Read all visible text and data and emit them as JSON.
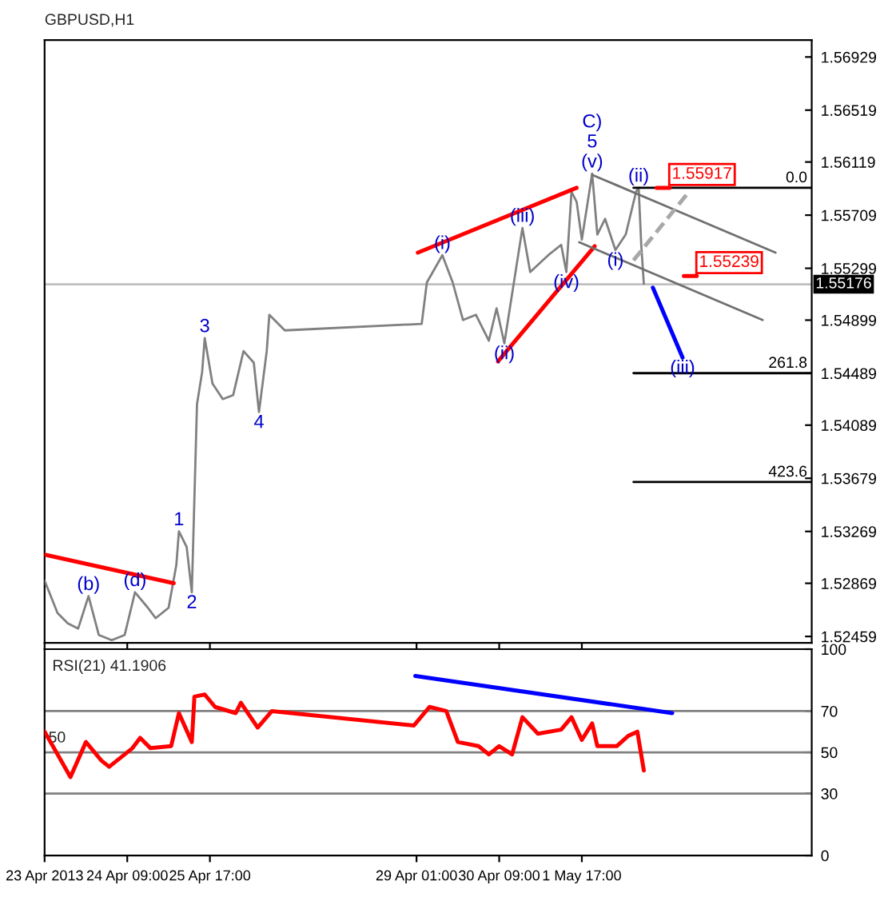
{
  "chart_data": [
    {
      "type": "line",
      "title": "GBPUSD,H1",
      "xlim": [
        "2013-04-23T01:00",
        "2013-05-05T10:00"
      ],
      "ylim": [
        1.5241,
        1.5706
      ],
      "yticks": [
        1.52459,
        1.52869,
        1.53269,
        1.53679,
        1.54089,
        1.54489,
        1.54899,
        1.55299,
        1.55709,
        1.56119,
        1.56519,
        1.56929
      ],
      "xticks": [
        {
          "value": "2013-04-23T01:00",
          "label": null
        },
        {
          "value": "2013-04-24T09:00",
          "label": null
        },
        {
          "value": "2013-04-25T17:00",
          "label": null
        },
        {
          "value": "2013-04-29T01:00",
          "label": null
        },
        {
          "value": "2013-04-30T09:00",
          "label": null
        },
        {
          "value": "2013-05-01T17:00",
          "label": null
        }
      ],
      "tick_labels": "y",
      "grid": false,
      "legend": false,
      "ref_lines": [
        {
          "axis": "y",
          "value": 1.55176,
          "label": "1.55176",
          "color": "#c0c0c0"
        }
      ],
      "series": [
        {
          "color": "#808080",
          "x": [
            "2013-04-23T01:00",
            "2013-04-23T06:00",
            "2013-04-23T10:00",
            "2013-04-23T14:00",
            "2013-04-23T18:00",
            "2013-04-23T22:00",
            "2013-04-24T03:00",
            "2013-04-24T08:00",
            "2013-04-24T12:00",
            "2013-04-24T17:00",
            "2013-04-24T20:00",
            "2013-04-25T01:00",
            "2013-04-25T04:00",
            "2013-04-25T05:00",
            "2013-04-25T08:00",
            "2013-04-25T10:00",
            "2013-04-25T12:00",
            "2013-04-25T14:00",
            "2013-04-25T15:00",
            "2013-04-25T18:00",
            "2013-04-25T22:00",
            "2013-04-26T02:00",
            "2013-04-26T06:00",
            "2013-04-26T10:00",
            "2013-04-26T12:00",
            "2013-04-26T15:00",
            "2013-04-26T16:00",
            "2013-04-26T22:00",
            "2013-04-29T03:00",
            "2013-04-29T05:00",
            "2013-04-29T11:00",
            "2013-04-29T15:00",
            "2013-04-29T19:00",
            "2013-04-30T00:00",
            "2013-04-30T05:00",
            "2013-04-30T08:00",
            "2013-04-30T11:00",
            "2013-04-30T18:00",
            "2013-04-30T21:00",
            "2013-05-01T04:00",
            "2013-05-01T09:00",
            "2013-05-01T11:00",
            "2013-05-01T13:00",
            "2013-05-01T15:00",
            "2013-05-01T17:00",
            "2013-05-01T21:00",
            "2013-05-01T23:00",
            "2013-05-02T02:00",
            "2013-05-02T06:00",
            "2013-05-02T10:00",
            "2013-05-02T14:00",
            "2013-05-02T15:00",
            "2013-05-02T16:00",
            "2013-05-02T17:00"
          ],
          "values": [
            1.5289,
            1.5264,
            1.5256,
            1.5252,
            1.5277,
            1.5247,
            1.5243,
            1.5247,
            1.528,
            1.5268,
            1.526,
            1.5268,
            1.5301,
            1.5327,
            1.5315,
            1.528,
            1.5425,
            1.545,
            1.5476,
            1.5441,
            1.5429,
            1.5432,
            1.5466,
            1.5457,
            1.5419,
            1.5466,
            1.5494,
            1.5482,
            1.5487,
            1.5519,
            1.554,
            1.5519,
            1.549,
            1.5494,
            1.5474,
            1.5499,
            1.5472,
            1.5561,
            1.5527,
            1.554,
            1.5548,
            1.5527,
            1.5589,
            1.5581,
            1.5552,
            1.5603,
            1.5556,
            1.5568,
            1.5544,
            1.5556,
            1.5589,
            1.5592,
            1.5548,
            1.5518
          ]
        },
        {
          "color": "#ff0000",
          "x": [
            "2013-04-23T01:00",
            "2013-04-25T03:00"
          ],
          "values": [
            1.5309,
            1.5287
          ]
        },
        {
          "color": "#ff0000",
          "x": [
            "2013-04-29T01:30",
            "2013-05-01T15:00"
          ],
          "values": [
            1.5542,
            1.5592
          ]
        },
        {
          "color": "#ff0000",
          "x": [
            "2013-04-30T08:30",
            "2013-05-01T22:00"
          ],
          "values": [
            1.5458,
            1.5547
          ]
        },
        {
          "color": "#707070",
          "x": [
            "2013-05-01T21:00",
            "2013-05-04T20:00"
          ],
          "values": [
            1.5602,
            1.5542
          ]
        },
        {
          "color": "#707070",
          "x": [
            "2013-05-01T16:00",
            "2013-05-04T15:00"
          ],
          "values": [
            1.555,
            1.549
          ]
        },
        {
          "color": "#a8a8a8",
          "line_style": "dashed",
          "x": [
            "2013-05-02T13:00",
            "2013-05-03T10:30"
          ],
          "values": [
            1.5536,
            1.5589
          ]
        },
        {
          "color": "#0000ff",
          "x": [
            "2013-05-02T20:30",
            "2013-05-03T08:00"
          ],
          "values": [
            1.5515,
            1.5461
          ]
        },
        {
          "color": "#000000",
          "x": [
            "2013-05-02T13:00",
            "2013-05-05T10:00"
          ],
          "values": [
            1.5592,
            1.5592
          ]
        },
        {
          "color": "#000000",
          "x": [
            "2013-05-02T13:00",
            "2013-05-05T10:00"
          ],
          "values": [
            1.5449,
            1.5449
          ]
        },
        {
          "color": "#000000",
          "x": [
            "2013-05-02T13:00",
            "2013-05-05T10:00"
          ],
          "values": [
            1.5365,
            1.5365
          ]
        },
        {
          "name": "1.55917",
          "color": "#ff0000",
          "x": [
            "2013-05-02T22:00",
            "2013-05-03T03:00"
          ],
          "values": [
            1.5592,
            1.5592
          ]
        },
        {
          "name": "1.55239",
          "color": "#ff0000",
          "x": [
            "2013-05-03T08:30",
            "2013-05-03T13:30"
          ],
          "values": [
            1.5524,
            1.5524
          ]
        }
      ],
      "annotations": [
        {
          "text": "(b)",
          "x": "2013-04-23T18:00",
          "y": 1.5277
        },
        {
          "text": "(d)",
          "x": "2013-04-24T12:00",
          "y": 1.528
        },
        {
          "text": "1",
          "x": "2013-04-25T05:00",
          "y": 1.5327
        },
        {
          "text": "2",
          "x": "2013-04-25T10:00",
          "y": 1.528
        },
        {
          "text": "3",
          "x": "2013-04-25T15:00",
          "y": 1.5476
        },
        {
          "text": "4",
          "x": "2013-04-26T12:00",
          "y": 1.5419
        },
        {
          "text": "(i)",
          "x": "2013-04-29T11:00",
          "y": 1.554
        },
        {
          "text": "(ii)",
          "x": "2013-04-30T11:00",
          "y": 1.5472
        },
        {
          "text": "(iii)",
          "x": "2013-04-30T18:00",
          "y": 1.5561
        },
        {
          "text": "(iv)",
          "x": "2013-05-01T11:00",
          "y": 1.5527
        },
        {
          "text": "(v)",
          "x": "2013-05-01T21:00",
          "y": 1.5603
        },
        {
          "text": "5",
          "x": "2013-05-01T21:00",
          "y": 1.5603
        },
        {
          "text": "C)",
          "x": "2013-05-01T21:00",
          "y": 1.5603
        },
        {
          "text": "(i)",
          "x": "2013-05-02T06:00",
          "y": 1.5544
        },
        {
          "text": "(ii)",
          "x": "2013-05-02T15:00",
          "y": 1.5592
        },
        {
          "text": "(iii)",
          "x": "2013-05-03T08:00",
          "y": 1.5461
        },
        {
          "text": "0.0",
          "x": "2013-05-05T10:00",
          "y": 1.5592
        },
        {
          "text": "261.8",
          "x": "2013-05-05T10:00",
          "y": 1.5449
        },
        {
          "text": "423.6",
          "x": "2013-05-05T10:00",
          "y": 1.5365
        }
      ]
    },
    {
      "type": "line",
      "title": "RSI(21) 41.1906",
      "xlim": [
        "2013-04-23T01:00",
        "2013-05-05T10:00"
      ],
      "ylim": [
        0,
        100
      ],
      "yticks": [
        0,
        30,
        50,
        70,
        100
      ],
      "xticks": [
        {
          "value": "2013-04-23T01:00",
          "label": "23 Apr 2013"
        },
        {
          "value": "2013-04-24T09:00",
          "label": "24 Apr 09:00"
        },
        {
          "value": "2013-04-25T17:00",
          "label": "25 Apr 17:00"
        },
        {
          "value": "2013-04-29T01:00",
          "label": "29 Apr 01:00"
        },
        {
          "value": "2013-04-30T09:00",
          "label": "30 Apr 09:00"
        },
        {
          "value": "2013-05-01T17:00",
          "label": "1 May 17:00"
        }
      ],
      "grid": false,
      "legend": false,
      "ref_lines": [
        {
          "axis": "y",
          "value": 70,
          "label": null,
          "color": "#808080"
        },
        {
          "axis": "y",
          "value": 50,
          "label": "50",
          "color": "#808080"
        },
        {
          "axis": "y",
          "value": 30,
          "label": null,
          "color": "#808080"
        }
      ],
      "series": [
        {
          "color": "#ff0000",
          "x": [
            "2013-04-23T01:00",
            "2013-04-23T06:00",
            "2013-04-23T11:00",
            "2013-04-23T17:00",
            "2013-04-23T23:00",
            "2013-04-24T02:00",
            "2013-04-24T11:00",
            "2013-04-24T14:00",
            "2013-04-24T18:00",
            "2013-04-25T02:00",
            "2013-04-25T05:00",
            "2013-04-25T10:00",
            "2013-04-25T11:00",
            "2013-04-25T15:00",
            "2013-04-25T19:00",
            "2013-04-26T03:00",
            "2013-04-26T05:00",
            "2013-04-26T11:30",
            "2013-04-26T17:00",
            "2013-04-29T00:00",
            "2013-04-29T06:00",
            "2013-04-29T12:30",
            "2013-04-29T17:00",
            "2013-04-30T01:00",
            "2013-04-30T05:00",
            "2013-04-30T09:00",
            "2013-04-30T14:00",
            "2013-04-30T18:00",
            "2013-05-01T00:00",
            "2013-05-01T09:00",
            "2013-05-01T13:00",
            "2013-05-01T17:00",
            "2013-05-01T21:00",
            "2013-05-01T23:00",
            "2013-05-02T06:30",
            "2013-05-02T11:00",
            "2013-05-02T14:30",
            "2013-05-02T17:00"
          ],
          "values": [
            60,
            49,
            38,
            55,
            46,
            43,
            52,
            57,
            52,
            53,
            69,
            55,
            77,
            78,
            72,
            69,
            74,
            62,
            70,
            63,
            72,
            70,
            55,
            53,
            49,
            53,
            49,
            67,
            59,
            61,
            67,
            56,
            64,
            53,
            53,
            58,
            60,
            41.2
          ]
        },
        {
          "color": "#0000ff",
          "x": [
            "2013-04-29T00:30",
            "2013-05-03T04:00"
          ],
          "values": [
            87,
            69
          ]
        }
      ]
    }
  ]
}
